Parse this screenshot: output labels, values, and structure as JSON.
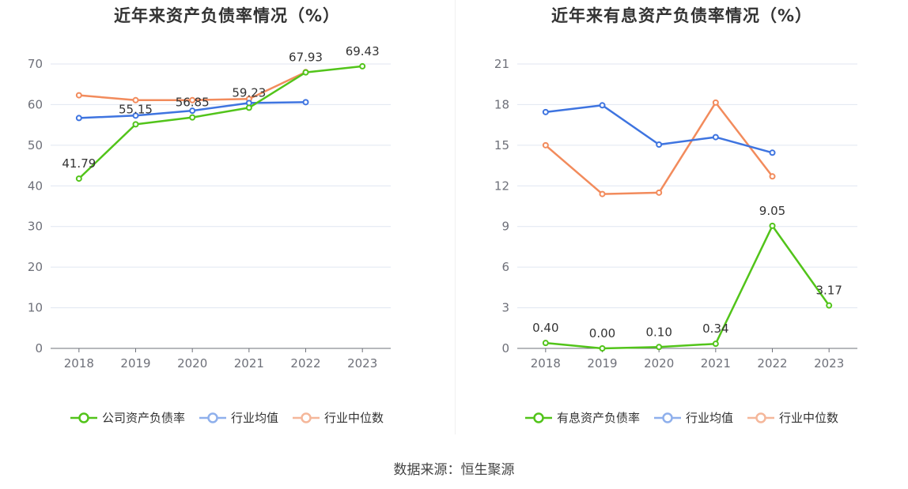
{
  "charts_meta": {
    "left_title": "近年来资产负债率情况（%）",
    "right_title": "近年来有息资产负债率情况（%）"
  },
  "source": "数据来源：恒生聚源",
  "colors": {
    "series1": "#52c41a",
    "series2": "#3e74e0",
    "series3": "#f28b5c"
  },
  "legend_left": [
    "公司资产负债率",
    "行业均值",
    "行业中位数"
  ],
  "legend_right": [
    "有息资产负债率",
    "行业均值",
    "行业中位数"
  ],
  "chart_data": [
    {
      "type": "line",
      "title": "近年来资产负债率情况（%）",
      "categories": [
        "2018",
        "2019",
        "2020",
        "2021",
        "2022",
        "2023"
      ],
      "ylim": [
        0,
        70
      ],
      "yticks": [
        0,
        10,
        20,
        30,
        40,
        50,
        60,
        70
      ],
      "series": [
        {
          "name": "公司资产负债率",
          "values": [
            41.79,
            55.15,
            56.85,
            59.23,
            67.93,
            69.43
          ],
          "labels": [
            "41.79",
            "55.15",
            "56.85",
            "59.23",
            "67.93",
            "69.43"
          ]
        },
        {
          "name": "行业均值",
          "values": [
            56.7,
            57.3,
            58.5,
            60.4,
            60.6,
            null
          ]
        },
        {
          "name": "行业中位数",
          "values": [
            62.3,
            61.1,
            61.1,
            61.4,
            68.0,
            null
          ]
        }
      ]
    },
    {
      "type": "line",
      "title": "近年来有息资产负债率情况（%）",
      "categories": [
        "2018",
        "2019",
        "2020",
        "2021",
        "2022",
        "2023"
      ],
      "ylim": [
        0,
        21
      ],
      "yticks": [
        0,
        3,
        6,
        9,
        12,
        15,
        18,
        21
      ],
      "series": [
        {
          "name": "有息资产负债率",
          "values": [
            0.4,
            0.0,
            0.1,
            0.34,
            9.05,
            3.17
          ],
          "labels": [
            "0.40",
            "0.00",
            "0.10",
            "0.34",
            "9.05",
            "3.17"
          ]
        },
        {
          "name": "行业均值",
          "values": [
            17.45,
            17.95,
            15.05,
            15.6,
            14.45,
            null
          ]
        },
        {
          "name": "行业中位数",
          "values": [
            15.0,
            11.4,
            11.5,
            18.15,
            12.7,
            null
          ]
        }
      ]
    }
  ]
}
